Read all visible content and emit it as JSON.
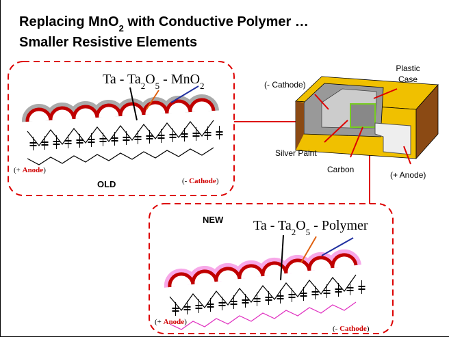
{
  "title": {
    "line1": [
      "Replacing MnO",
      "2",
      " with Conductive Polymer …"
    ],
    "line2": "Smaller Resistive Elements"
  },
  "old": {
    "formula": [
      "Ta - Ta",
      "2",
      "O",
      "5",
      " - MnO",
      "2"
    ],
    "anode": [
      "(+ ",
      "Anode",
      ")"
    ],
    "cathode": [
      "(- ",
      "Cathode",
      ")"
    ],
    "label": "OLD"
  },
  "new": {
    "label": "NEW",
    "formula": [
      "Ta - Ta",
      "2",
      "O",
      "5",
      " - Polymer"
    ],
    "anode": [
      "(+ ",
      "Anode",
      ")"
    ],
    "cathode": [
      "(- ",
      "Cathode",
      ")"
    ]
  },
  "capacitor": {
    "cathode": "(- Cathode)",
    "case": [
      "Plastic",
      "Case"
    ],
    "silver_paint": "Silver Paint",
    "carbon": "Carbon",
    "anode": "(+ Anode)"
  }
}
